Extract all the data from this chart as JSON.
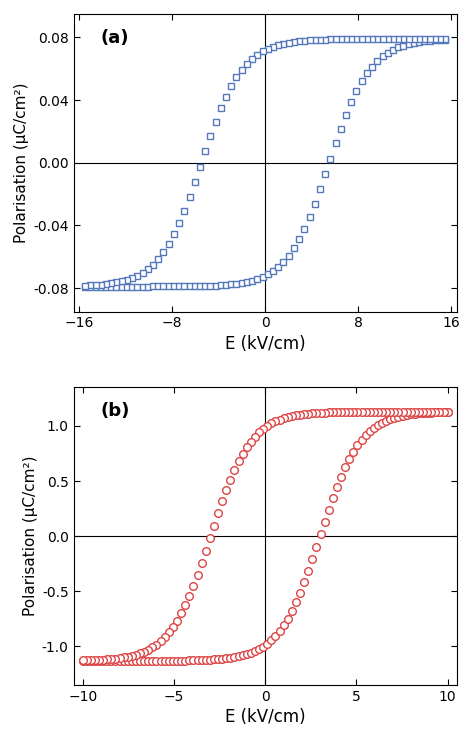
{
  "plot_a": {
    "title": "(a)",
    "xlabel": "E (kV/cm)",
    "ylabel": "Polarisation (μC/cm²)",
    "xlim": [
      -16.5,
      16.5
    ],
    "ylim": [
      -0.095,
      0.095
    ],
    "xticks": [
      -16,
      -8,
      0,
      8,
      16
    ],
    "yticks": [
      -0.08,
      -0.04,
      0.0,
      0.04,
      0.08
    ],
    "color": "#5577bb",
    "marker": "s",
    "E_max": 15.5,
    "P_max": 0.079,
    "Ec": 5.5,
    "k": 0.28,
    "n_points": 70
  },
  "plot_b": {
    "title": "(b)",
    "xlabel": "E (kV/cm)",
    "ylabel": "Polarisation (μC/cm²)",
    "xlim": [
      -10.5,
      10.5
    ],
    "ylim": [
      -1.35,
      1.35
    ],
    "xticks": [
      -10,
      -5,
      0,
      5,
      10
    ],
    "yticks": [
      -1.0,
      -0.5,
      0.0,
      0.5,
      1.0
    ],
    "color": "#dd4444",
    "marker": "o",
    "E_max": 10.0,
    "P_max": 1.13,
    "Ec": 3.0,
    "k": 0.45,
    "n_points": 90
  },
  "background_color": "#ffffff",
  "figure_size": [
    4.74,
    7.4
  ],
  "dpi": 100
}
